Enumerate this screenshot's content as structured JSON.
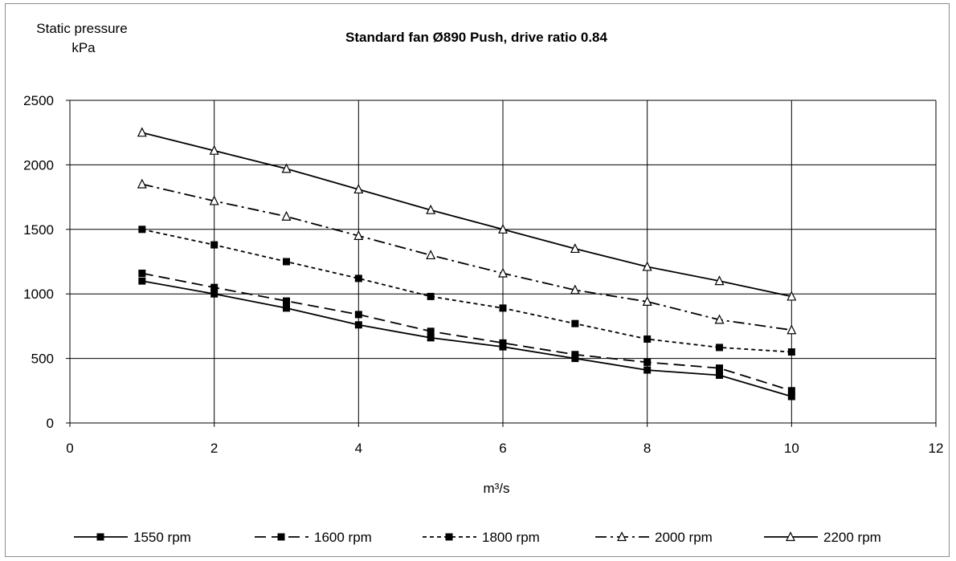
{
  "chart_data": {
    "type": "line",
    "title": "Standard fan Ø890 Push, drive ratio 0.84",
    "ylabel_line1": "Static pressure",
    "ylabel_line2": "kPa",
    "xlabel": "m³/s",
    "xlim": [
      0,
      12
    ],
    "ylim": [
      0,
      2500
    ],
    "xticks": [
      "0",
      "2",
      "4",
      "6",
      "8",
      "10",
      "12"
    ],
    "yticks": [
      "0",
      "500",
      "1000",
      "1500",
      "2000",
      "2500"
    ],
    "grid": true,
    "legend_position": "bottom",
    "x": [
      1,
      2,
      3,
      4,
      5,
      6,
      7,
      8,
      9,
      10
    ],
    "series": [
      {
        "name": "1550 rpm",
        "marker": "square",
        "dash": "solid",
        "values": [
          1100,
          1000,
          890,
          760,
          660,
          590,
          500,
          410,
          370,
          205
        ]
      },
      {
        "name": "1600 rpm",
        "marker": "square",
        "dash": "long-dash",
        "values": [
          1160,
          1050,
          945,
          840,
          710,
          620,
          530,
          470,
          425,
          250
        ]
      },
      {
        "name": "1800 rpm",
        "marker": "square",
        "dash": "short-dash",
        "values": [
          1500,
          1380,
          1250,
          1120,
          980,
          890,
          770,
          650,
          585,
          550
        ]
      },
      {
        "name": "2000 rpm",
        "marker": "triangle",
        "dash": "dash-dot",
        "values": [
          1850,
          1720,
          1600,
          1450,
          1300,
          1160,
          1030,
          940,
          800,
          720
        ]
      },
      {
        "name": "2200 rpm",
        "marker": "triangle",
        "dash": "solid",
        "values": [
          2250,
          2110,
          1970,
          1810,
          1650,
          1500,
          1350,
          1210,
          1100,
          980
        ]
      }
    ]
  }
}
